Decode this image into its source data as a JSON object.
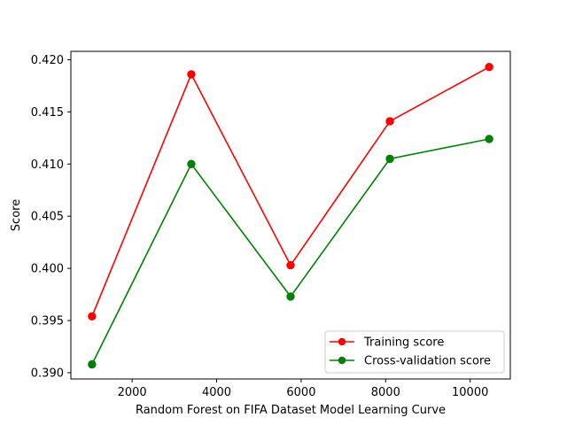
{
  "chart_data": {
    "type": "line",
    "title": "",
    "xlabel": "Random Forest on FIFA Dataset Model Learning Curve",
    "ylabel": "Score",
    "x": [
      1050,
      3400,
      5750,
      8100,
      10450
    ],
    "xlim": [
      550,
      10950
    ],
    "ylim": [
      0.3894,
      0.4208
    ],
    "xticks": [
      2000,
      4000,
      6000,
      8000,
      10000
    ],
    "yticks": [
      0.39,
      0.395,
      0.4,
      0.405,
      0.41,
      0.415,
      0.42
    ],
    "grid": false,
    "legend_position": "lower-right",
    "series": [
      {
        "name": "Training score",
        "color": "#ff0000",
        "values": [
          0.3954,
          0.4186,
          0.4003,
          0.4141,
          0.4193
        ]
      },
      {
        "name": "Cross-validation score",
        "color": "#008000",
        "values": [
          0.3908,
          0.41,
          0.3973,
          0.4105,
          0.4124
        ]
      }
    ]
  }
}
